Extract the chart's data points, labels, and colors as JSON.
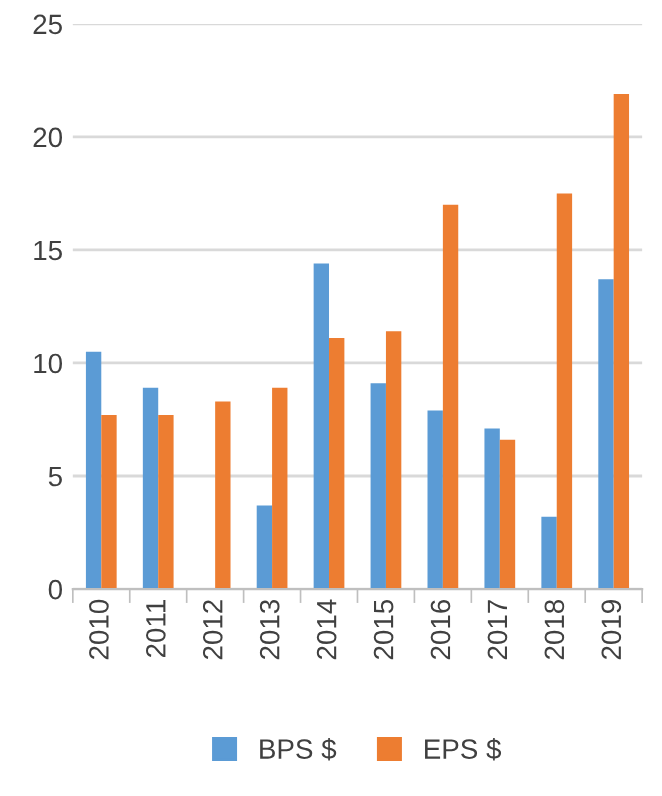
{
  "chart_data": {
    "type": "bar",
    "categories": [
      "2010",
      "2011",
      "2012",
      "2013",
      "2014",
      "2015",
      "2016",
      "2017",
      "2018",
      "2019"
    ],
    "series": [
      {
        "name": "BPS $",
        "color": "#5b9bd5",
        "values": [
          10.5,
          8.9,
          null,
          3.7,
          14.4,
          9.1,
          7.9,
          7.1,
          3.2,
          13.7
        ]
      },
      {
        "name": "EPS $",
        "color": "#ed7d31",
        "values": [
          7.7,
          7.7,
          8.3,
          8.9,
          11.1,
          11.4,
          17.0,
          6.6,
          17.5,
          21.9
        ]
      }
    ],
    "ylim": [
      0,
      25
    ],
    "yticks": [
      0,
      5,
      10,
      15,
      20,
      25
    ],
    "grid": "y",
    "legend": "bottom"
  }
}
